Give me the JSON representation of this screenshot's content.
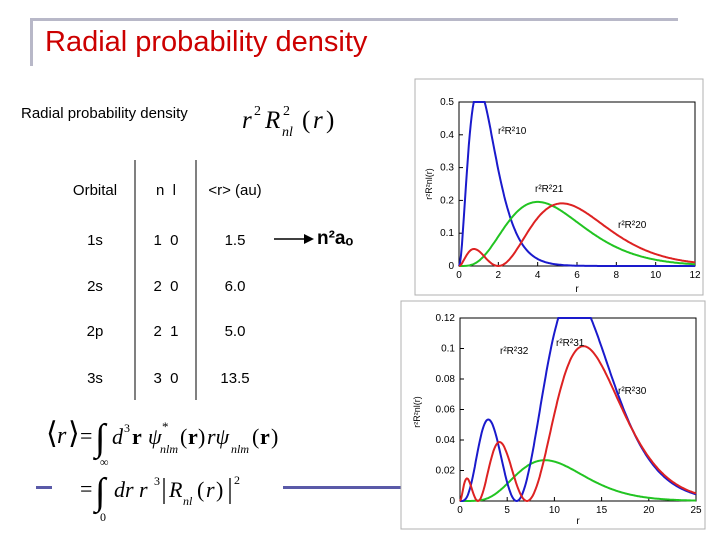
{
  "header": {
    "title": "Radial probability density"
  },
  "main": {
    "subtitle": "Radial probability density",
    "arrow_label": "n²aₒ",
    "table": {
      "headers": [
        "Orbital",
        "n  l",
        "<r> (au)"
      ],
      "rows": [
        [
          "1s",
          "1  0",
          "1.5"
        ],
        [
          "2s",
          "2  0",
          "6.0"
        ],
        [
          "2p",
          "2  1",
          "5.0"
        ],
        [
          "3s",
          "3  0",
          "13.5"
        ]
      ]
    }
  },
  "plot_top": {
    "ylabel": "r²R²nl(r)",
    "xlabel": "r",
    "xlim": [
      0,
      12
    ],
    "ylim": [
      0,
      0.5
    ],
    "x_ticks": [
      "0",
      "2",
      "4",
      "6",
      "8",
      "10",
      "12"
    ],
    "y_ticks": [
      "0",
      "0.1",
      "0.2",
      "0.3",
      "0.4",
      "0.5"
    ],
    "curve_labels": [
      "r²R²10",
      "r²R²21",
      "r²R²20"
    ],
    "colors": {
      "R10": "#1a1acc",
      "R21": "#22c422",
      "R20": "#dd2222"
    }
  },
  "plot_bottom": {
    "ylabel": "r²R²nl(r)",
    "xlabel": "r",
    "xlim": [
      0,
      25
    ],
    "ylim": [
      0,
      0.12
    ],
    "x_ticks": [
      "0",
      "5",
      "10",
      "15",
      "20",
      "25"
    ],
    "y_ticks": [
      "0",
      "0.02",
      "0.04",
      "0.06",
      "0.08",
      "0.1",
      "0.12"
    ],
    "curve_labels": [
      "r²R²32",
      "r²R²31",
      "r²R²30"
    ],
    "colors": {
      "R32": "#22c422",
      "R31": "#1a1acc",
      "R30": "#dd2222"
    }
  }
}
